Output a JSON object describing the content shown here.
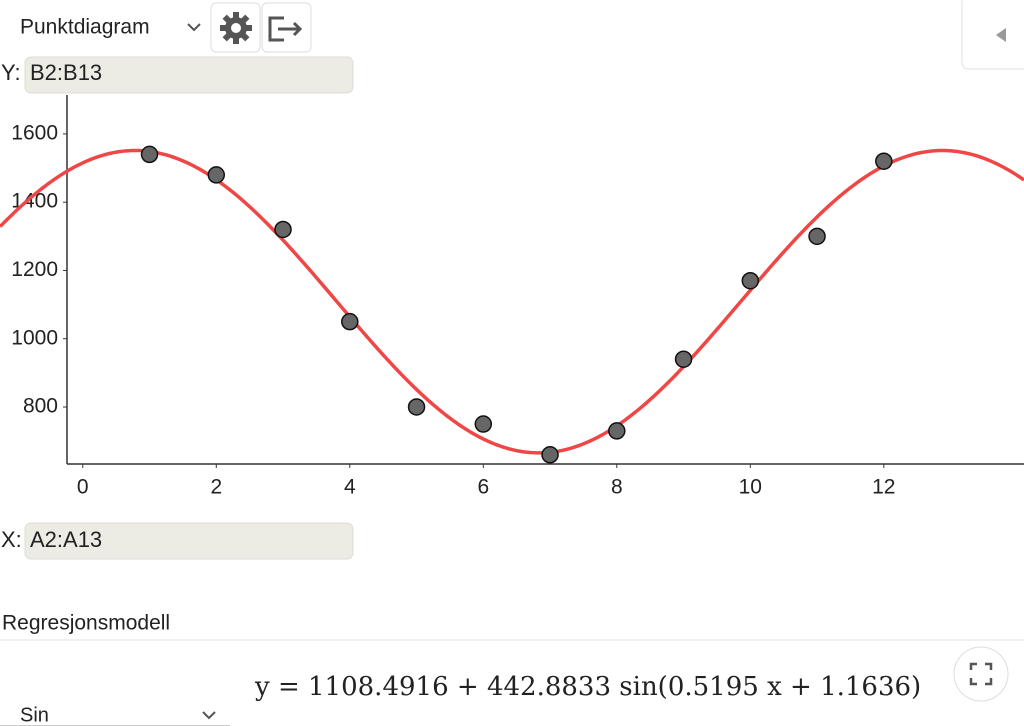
{
  "toolbar": {
    "view_select": "Punktdiagram"
  },
  "y_input": {
    "label": "Y:",
    "value": "B2:B13"
  },
  "x_input": {
    "label": "X:",
    "value": "A2:A13"
  },
  "regression": {
    "heading": "Regresjonsmodell",
    "model_select": "Sin"
  },
  "chart_data": {
    "type": "scatter",
    "x": [
      1,
      2,
      3,
      4,
      5,
      6,
      7,
      8,
      9,
      10,
      11,
      12
    ],
    "values": [
      1540,
      1480,
      1320,
      1050,
      800,
      750,
      660,
      730,
      940,
      1170,
      1300,
      1520
    ],
    "xlim": [
      -1.24,
      14.1
    ],
    "ylim": [
      633,
      1714
    ],
    "xticks": [
      0,
      2,
      4,
      6,
      8,
      10,
      12
    ],
    "yticks": [
      800,
      1000,
      1200,
      1400,
      1600
    ],
    "point_color": "#666666",
    "curve_color": "#f04646",
    "model": {
      "prefix": "y = ",
      "a": 1108.4916,
      "op1": " + ",
      "b": 442.8833,
      "fn": "  sin(",
      "c": 0.5195,
      "op2": " x + ",
      "d": 1.1636,
      "close": ")"
    }
  }
}
